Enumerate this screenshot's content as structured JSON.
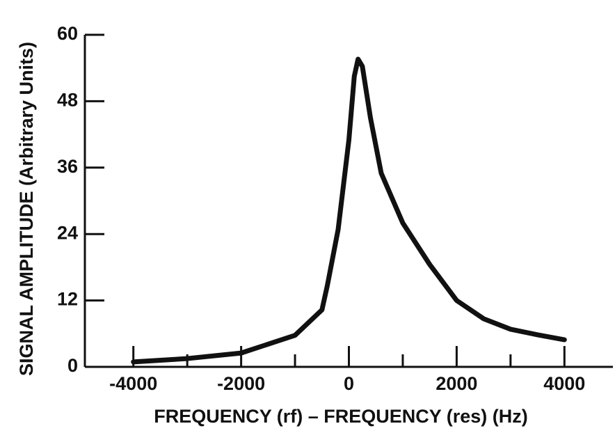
{
  "chart_data": {
    "type": "line",
    "x_label": "FREQUENCY (rf) – FREQUENCY (res) (Hz)",
    "y_label": "SIGNAL AMPLITUDE (Arbitrary Units)",
    "x": [
      -4000,
      -3000,
      -2000,
      -1000,
      -500,
      -400,
      -200,
      0,
      100,
      170,
      250,
      400,
      600,
      1000,
      1500,
      2000,
      2500,
      3000,
      3500,
      4000
    ],
    "series": [
      {
        "name": "signal",
        "color": "#111111",
        "values": [
          0.9,
          1.5,
          2.5,
          5.7,
          10.3,
          14.7,
          24.8,
          41,
          52.5,
          55.6,
          54.3,
          45,
          35,
          26,
          18.5,
          12,
          8.7,
          6.8,
          5.8,
          4.9
        ]
      }
    ],
    "xlim": [
      -4900,
      4900
    ],
    "xticks": [
      -4000,
      -2000,
      0,
      2000,
      4000
    ],
    "xminor_ticks": [
      -3000,
      -1000,
      1000,
      3000
    ],
    "ylim": [
      0,
      60
    ],
    "yticks": [
      0,
      12,
      24,
      36,
      48,
      60
    ]
  }
}
